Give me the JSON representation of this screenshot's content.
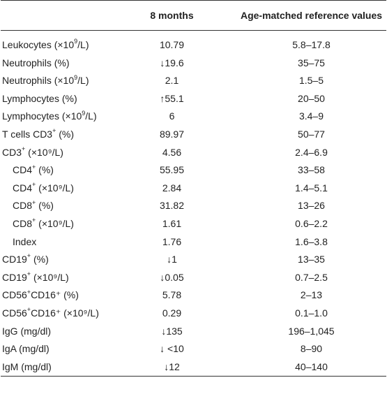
{
  "header": {
    "col_param": "",
    "col_value": "8 months",
    "col_ref": "Age-matched reference values"
  },
  "rows": [
    {
      "param": "Leukocytes (×10",
      "sup": "9",
      "param_tail": "/L)",
      "value": "10.79",
      "ref": "5.8–17.8",
      "indent": false
    },
    {
      "param": "Neutrophils (%)",
      "sup": "",
      "param_tail": "",
      "value": "↓19.6",
      "ref": "35–75",
      "indent": false
    },
    {
      "param": "Neutrophils (×10",
      "sup": "9",
      "param_tail": "/L)",
      "value": "2.1",
      "ref": "1.5–5",
      "indent": false
    },
    {
      "param": "Lymphocytes (%)",
      "sup": "",
      "param_tail": "",
      "value": "↑55.1",
      "ref": "20–50",
      "indent": false
    },
    {
      "param": "Lymphocytes (×10",
      "sup": "9",
      "param_tail": "/L)",
      "value": "6",
      "ref": "3.4–9",
      "indent": false
    },
    {
      "param": "T cells CD3",
      "sup": "+",
      "param_tail": " (%)",
      "value": "89.97",
      "ref": "50–77",
      "indent": false
    },
    {
      "param": "CD3",
      "sup": "+",
      "param_tail": " (×10⁹/L)",
      "value": "4.56",
      "ref": "2.4–6.9",
      "indent": false
    },
    {
      "param": "CD4",
      "sup": "+",
      "param_tail": " (%)",
      "value": "55.95",
      "ref": "33–58",
      "indent": true
    },
    {
      "param": "CD4",
      "sup": "+",
      "param_tail": " (×10⁹/L)",
      "value": "2.84",
      "ref": "1.4–5.1",
      "indent": true
    },
    {
      "param": "CD8",
      "sup": "+",
      "param_tail": " (%)",
      "value": "31.82",
      "ref": "13–26",
      "indent": true
    },
    {
      "param": "CD8",
      "sup": "+",
      "param_tail": " (×10⁹/L)",
      "value": "1.61",
      "ref": "0.6–2.2",
      "indent": true
    },
    {
      "param": "Index",
      "sup": "",
      "param_tail": "",
      "value": "1.76",
      "ref": "1.6–3.8",
      "indent": true
    },
    {
      "param": "CD19",
      "sup": "+",
      "param_tail": " (%)",
      "value": "↓1",
      "ref": "13–35",
      "indent": false
    },
    {
      "param": "CD19",
      "sup": "+",
      "param_tail": " (×10⁹/L)",
      "value": "↓0.05",
      "ref": "0.7–2.5",
      "indent": false
    },
    {
      "param": "CD56",
      "sup": "+",
      "param_tail": "CD16⁺ (%)",
      "value": "5.78",
      "ref": "2–13",
      "indent": false
    },
    {
      "param": "CD56",
      "sup": "+",
      "param_tail": "CD16⁺ (×10⁹/L)",
      "value": "0.29",
      "ref": "0.1–1.0",
      "indent": false
    },
    {
      "param": "IgG (mg/dl)",
      "sup": "",
      "param_tail": "",
      "value": "↓135",
      "ref": "196–1,045",
      "indent": false
    },
    {
      "param": "IgA (mg/dl)",
      "sup": "",
      "param_tail": "",
      "value": "↓ <10",
      "ref": "8–90",
      "indent": false
    },
    {
      "param": "IgM (mg/dl)",
      "sup": "",
      "param_tail": "",
      "value": "↓12",
      "ref": "40–140",
      "indent": false
    }
  ]
}
